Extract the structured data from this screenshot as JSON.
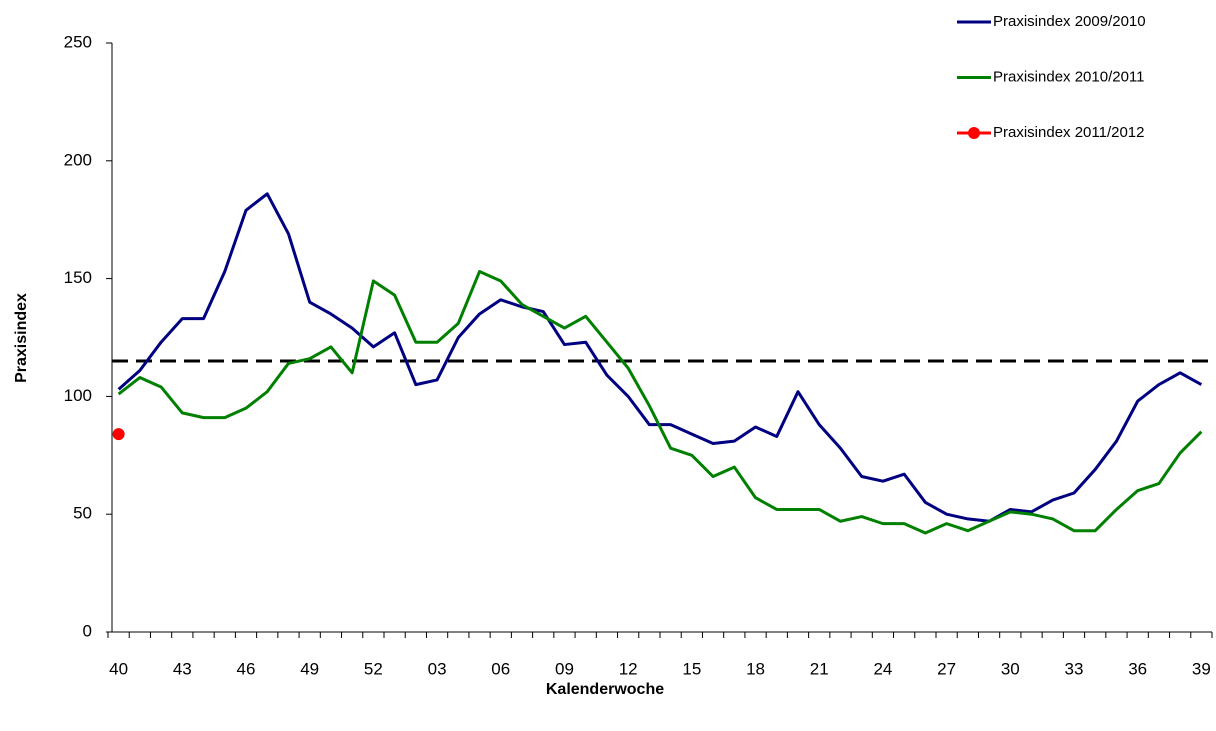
{
  "chart_data": {
    "type": "line",
    "x_label": "Kalenderwoche",
    "y_label": "Praxisindex",
    "categories": [
      "40",
      null,
      null,
      "43",
      null,
      null,
      "46",
      null,
      null,
      "49",
      null,
      null,
      "52",
      null,
      null,
      "03",
      null,
      null,
      "06",
      null,
      null,
      "09",
      null,
      null,
      "12",
      null,
      null,
      "15",
      null,
      null,
      "18",
      null,
      null,
      "21",
      null,
      null,
      "24",
      null,
      null,
      "27",
      null,
      null,
      "30",
      null,
      null,
      "33",
      null,
      null,
      "36",
      null,
      null,
      "39"
    ],
    "series": [
      {
        "name": "Praxisindex 2009/2010",
        "color": "#000080",
        "marker": false,
        "values": [
          103,
          111,
          123,
          133,
          133,
          153,
          179,
          186,
          169,
          140,
          135,
          129,
          121,
          127,
          105,
          107,
          125,
          135,
          141,
          138,
          136,
          122,
          123,
          109,
          100,
          88,
          88,
          84,
          80,
          81,
          87,
          83,
          102,
          88,
          78,
          66,
          64,
          67,
          55,
          50,
          48,
          47,
          52,
          51,
          56,
          59,
          69,
          81,
          98,
          105,
          110,
          105
        ]
      },
      {
        "name": "Praxisindex 2010/2011",
        "color": "#008000",
        "marker": false,
        "values": [
          101,
          108,
          104,
          93,
          91,
          91,
          95,
          102,
          114,
          116,
          121,
          110,
          149,
          143,
          123,
          123,
          131,
          153,
          149,
          139,
          134,
          129,
          134,
          123,
          112,
          96,
          78,
          75,
          66,
          70,
          57,
          52,
          52,
          52,
          47,
          49,
          46,
          46,
          42,
          46,
          43,
          47,
          51,
          50,
          48,
          43,
          43,
          52,
          60,
          63,
          76,
          85
        ]
      },
      {
        "name": "Praxisindex 2011/2012",
        "color": "#ff0000",
        "marker": true,
        "values": [
          84,
          null,
          null,
          null,
          null,
          null,
          null,
          null,
          null,
          null,
          null,
          null,
          null,
          null,
          null,
          null,
          null,
          null,
          null,
          null,
          null,
          null,
          null,
          null,
          null,
          null,
          null,
          null,
          null,
          null,
          null,
          null,
          null,
          null,
          null,
          null,
          null,
          null,
          null,
          null,
          null,
          null,
          null,
          null,
          null,
          null,
          null,
          null,
          null,
          null,
          null,
          null
        ]
      }
    ],
    "reference_line": 115,
    "ylim": [
      0,
      250
    ],
    "yticks": [
      0,
      50,
      100,
      150,
      200,
      250
    ],
    "grid": false,
    "legend": "top-right"
  }
}
